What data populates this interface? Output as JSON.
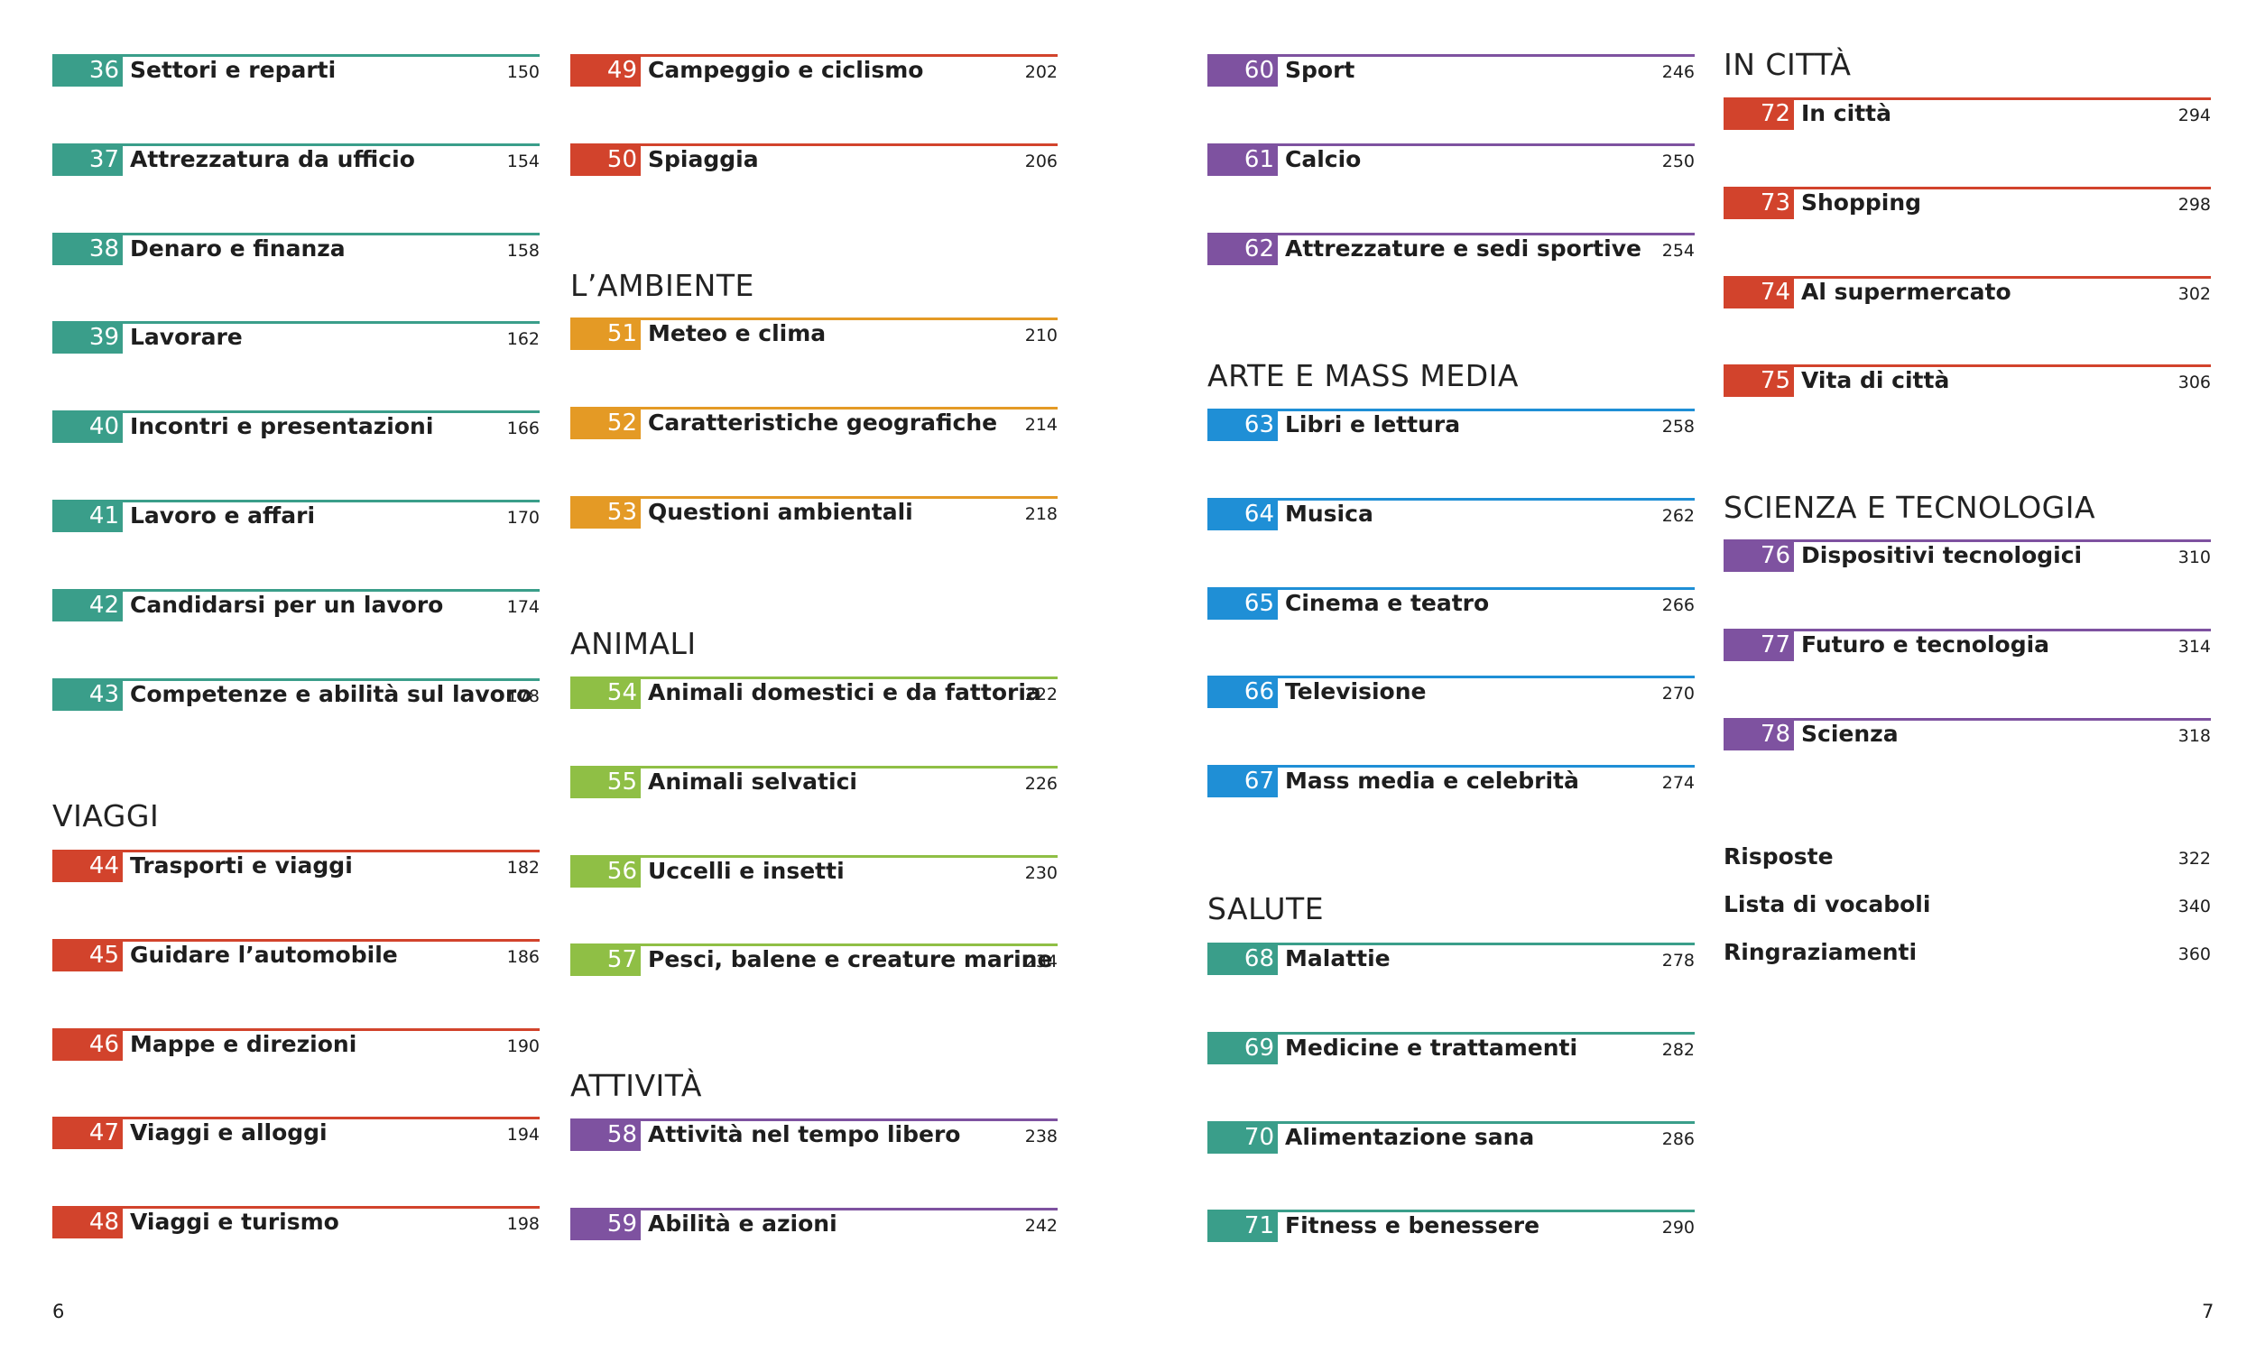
{
  "theme": {
    "teal": "#3a9e8a",
    "red": "#d2432c",
    "orange": "#e49a25",
    "green": "#8fbf45",
    "purple": "#7e52a0",
    "blue": "#1f8fd6"
  },
  "columns": [
    {
      "blocks": [
        {
          "heading": "",
          "color": "teal",
          "entries": [
            {
              "num": "36",
              "title": "Settori e reparti",
              "page": "150"
            },
            {
              "num": "37",
              "title": "Attrezzatura da ufficio",
              "page": "154"
            },
            {
              "num": "38",
              "title": "Denaro e finanza",
              "page": "158"
            },
            {
              "num": "39",
              "title": "Lavorare",
              "page": "162"
            },
            {
              "num": "40",
              "title": "Incontri e presentazioni",
              "page": "166"
            },
            {
              "num": "41",
              "title": "Lavoro e affari",
              "page": "170"
            },
            {
              "num": "42",
              "title": "Candidarsi per un lavoro",
              "page": "174"
            },
            {
              "num": "43",
              "title": "Competenze e abilità sul lavoro",
              "page": "178"
            }
          ]
        },
        {
          "heading": "VIAGGI",
          "color": "red",
          "entries": [
            {
              "num": "44",
              "title": "Trasporti e viaggi",
              "page": "182"
            },
            {
              "num": "45",
              "title": "Guidare l’automobile",
              "page": "186"
            },
            {
              "num": "46",
              "title": "Mappe e direzioni",
              "page": "190"
            },
            {
              "num": "47",
              "title": "Viaggi e alloggi",
              "page": "194"
            },
            {
              "num": "48",
              "title": "Viaggi e turismo",
              "page": "198"
            }
          ]
        }
      ]
    },
    {
      "blocks": [
        {
          "heading": "",
          "color": "red",
          "entries": [
            {
              "num": "49",
              "title": "Campeggio e ciclismo",
              "page": "202"
            },
            {
              "num": "50",
              "title": "Spiaggia",
              "page": "206"
            }
          ]
        },
        {
          "heading": "L’AMBIENTE",
          "color": "orange",
          "entries": [
            {
              "num": "51",
              "title": "Meteo e clima",
              "page": "210"
            },
            {
              "num": "52",
              "title": "Caratteristiche geografiche",
              "page": "214"
            },
            {
              "num": "53",
              "title": "Questioni ambientali",
              "page": "218"
            }
          ]
        },
        {
          "heading": "ANIMALI",
          "color": "green",
          "entries": [
            {
              "num": "54",
              "title": "Animali domestici e da fattoria",
              "page": "222"
            },
            {
              "num": "55",
              "title": "Animali selvatici",
              "page": "226"
            },
            {
              "num": "56",
              "title": "Uccelli e insetti",
              "page": "230"
            },
            {
              "num": "57",
              "title": "Pesci, balene e creature marine",
              "page": "234"
            }
          ]
        },
        {
          "heading": "ATTIVITÀ",
          "color": "purple",
          "entries": [
            {
              "num": "58",
              "title": "Attività nel tempo libero",
              "page": "238"
            },
            {
              "num": "59",
              "title": "Abilità e azioni",
              "page": "242"
            }
          ]
        }
      ]
    },
    {
      "blocks": [
        {
          "heading": "",
          "color": "purple",
          "entries": [
            {
              "num": "60",
              "title": "Sport",
              "page": "246"
            },
            {
              "num": "61",
              "title": "Calcio",
              "page": "250"
            },
            {
              "num": "62",
              "title": "Attrezzature e sedi sportive",
              "page": "254"
            }
          ]
        },
        {
          "heading": "ARTE E MASS MEDIA",
          "color": "blue",
          "entries": [
            {
              "num": "63",
              "title": "Libri e lettura",
              "page": "258"
            },
            {
              "num": "64",
              "title": "Musica",
              "page": "262"
            },
            {
              "num": "65",
              "title": "Cinema e teatro",
              "page": "266"
            },
            {
              "num": "66",
              "title": "Televisione",
              "page": "270"
            },
            {
              "num": "67",
              "title": "Mass media e celebrità",
              "page": "274"
            }
          ]
        },
        {
          "heading": "SALUTE",
          "color": "teal",
          "entries": [
            {
              "num": "68",
              "title": "Malattie",
              "page": "278"
            },
            {
              "num": "69",
              "title": "Medicine e trattamenti",
              "page": "282"
            },
            {
              "num": "70",
              "title": "Alimentazione sana",
              "page": "286"
            },
            {
              "num": "71",
              "title": "Fitness e benessere",
              "page": "290"
            }
          ]
        }
      ]
    },
    {
      "blocks": [
        {
          "heading": "IN CITTÀ",
          "color": "red",
          "entries": [
            {
              "num": "72",
              "title": "In città",
              "page": "294"
            },
            {
              "num": "73",
              "title": "Shopping",
              "page": "298"
            },
            {
              "num": "74",
              "title": "Al supermercato",
              "page": "302"
            },
            {
              "num": "75",
              "title": "Vita di città",
              "page": "306"
            }
          ]
        },
        {
          "heading": "SCIENZA E TECNOLOGIA",
          "color": "purple",
          "entries": [
            {
              "num": "76",
              "title": "Dispositivi tecnologici",
              "page": "310"
            },
            {
              "num": "77",
              "title": "Futuro e tecnologia",
              "page": "314"
            },
            {
              "num": "78",
              "title": "Scienza",
              "page": "318"
            }
          ]
        }
      ],
      "extras": [
        {
          "title": "Risposte",
          "page": "322"
        },
        {
          "title": "Lista di vocaboli",
          "page": "340"
        },
        {
          "title": "Ringraziamenti",
          "page": "360"
        }
      ]
    }
  ],
  "folios": {
    "left": "6",
    "right": "7"
  }
}
